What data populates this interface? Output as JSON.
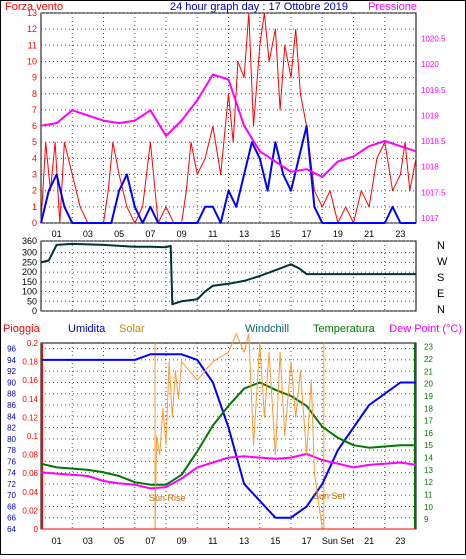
{
  "top": {
    "left_title": "Forza vento",
    "center_title": "24 hour graph day : 17 Ottobre 2019",
    "right_title": "Pressione"
  },
  "bottom_header": {
    "pioggia": "Pioggia",
    "umidita": "Umidita",
    "solar": "Solar",
    "windchill": "Windchill",
    "temperatura": "Temperatura",
    "dewpoint": "Dew Point (°C)"
  },
  "wind_dir_labels": [
    "N",
    "W",
    "S",
    "E",
    "N"
  ],
  "annotations": {
    "sunrise": "Sun Rise",
    "sunset": "Sun Set",
    "sunset_tick": "Sun Set"
  },
  "colors": {
    "wind": "#ff0000",
    "gust": "#0000ff",
    "pressure": "#ff00ff",
    "direction": "#003333",
    "humidity": "#0000ff",
    "temperature": "#007700",
    "dewpoint": "#ff00ff",
    "solar": "#ff9933",
    "rain": "#ff0000",
    "grid": "#008000"
  },
  "chart_data": [
    {
      "type": "line",
      "x_tick_labels": [
        "01",
        "03",
        "05",
        "07",
        "09",
        "11",
        "13",
        "15",
        "17",
        "19",
        "21",
        "23"
      ],
      "left_axis": {
        "ylim": [
          0,
          13
        ],
        "ticks": [
          "0",
          "1",
          "2",
          "3",
          "4",
          "5",
          "6",
          "7",
          "8",
          "9",
          "10",
          "11",
          "12",
          "13"
        ]
      },
      "right_axis": {
        "ylim": [
          1016.9,
          1021.0
        ],
        "ticks": [
          "1017",
          "1017.5",
          "1018",
          "1018.5",
          "1019",
          "1019.5",
          "1020",
          "1020.5"
        ]
      },
      "series": [
        {
          "key": "wind",
          "axis": "left",
          "x": [
            0,
            0.3,
            0.6,
            0.9,
            1.2,
            1.5,
            2,
            2.5,
            3,
            3.5,
            4,
            4.3,
            4.6,
            5,
            5.5,
            6,
            6.5,
            7,
            7.5,
            8,
            8.5,
            9,
            9.3,
            9.6,
            10,
            10.5,
            11,
            11.5,
            12,
            12.3,
            12.6,
            13,
            13.3,
            13.6,
            14,
            14.3,
            14.6,
            15,
            15.3,
            15.6,
            16,
            16.3,
            16.6,
            17,
            17.5,
            18,
            18.5,
            19,
            19.5,
            20,
            20.5,
            21,
            21.5,
            22,
            22.5,
            23,
            23.3,
            23.6,
            24
          ],
          "y": [
            0,
            5,
            2,
            5,
            0,
            5,
            3,
            1,
            0,
            0,
            0,
            2,
            5,
            3,
            1,
            0,
            1,
            5,
            0,
            1,
            0,
            0,
            2,
            5,
            3,
            4,
            6,
            3,
            8,
            5,
            10,
            9,
            13,
            6,
            11,
            13,
            10,
            12,
            7,
            11,
            9,
            12,
            8,
            6,
            2,
            1,
            2,
            0,
            1,
            0,
            2,
            1,
            4,
            5,
            2,
            3,
            5,
            2,
            4
          ]
        },
        {
          "key": "gust",
          "axis": "left",
          "x": [
            0,
            0.5,
            1,
            1.5,
            2,
            2.5,
            3,
            3.5,
            4,
            4.5,
            5,
            5.5,
            6,
            6.5,
            7,
            7.5,
            8,
            8.5,
            9,
            9.5,
            10,
            10.5,
            11,
            11.5,
            12,
            12.5,
            13,
            13.5,
            14,
            14.5,
            15,
            15.5,
            16,
            16.5,
            17,
            17.5,
            18,
            18.5,
            19,
            19.5,
            20,
            20.5,
            21,
            21.5,
            22,
            22.5,
            23,
            23.5,
            24
          ],
          "y": [
            0,
            2,
            3,
            1,
            0,
            0,
            0,
            0,
            0,
            0,
            2,
            3,
            1,
            0,
            1,
            0,
            0,
            0,
            0,
            0,
            0,
            1,
            1,
            0,
            2,
            1,
            3,
            5,
            4,
            2,
            5,
            3,
            2,
            4,
            6,
            1,
            0,
            0,
            0,
            0,
            0,
            0,
            0,
            0,
            0,
            1,
            0,
            0,
            0
          ]
        },
        {
          "key": "pressure",
          "axis": "right",
          "x": [
            0,
            1,
            2,
            3,
            4,
            5,
            6,
            7,
            8,
            9,
            10,
            11,
            12,
            13,
            14,
            15,
            16,
            17,
            18,
            19,
            20,
            21,
            22,
            23,
            24
          ],
          "y": [
            1018.8,
            1018.85,
            1019.1,
            1019.0,
            1018.9,
            1018.85,
            1018.9,
            1019.1,
            1018.6,
            1018.9,
            1019.3,
            1019.8,
            1019.7,
            1018.8,
            1018.3,
            1018.1,
            1017.9,
            1017.95,
            1017.8,
            1018.1,
            1018.2,
            1018.4,
            1018.5,
            1018.4,
            1018.3
          ]
        }
      ]
    },
    {
      "type": "line",
      "x_tick_labels": [
        "01",
        "03",
        "05",
        "07",
        "09",
        "11",
        "13",
        "15",
        "17",
        "19",
        "21",
        "23"
      ],
      "ylim": [
        0,
        360
      ],
      "y_ticks": [
        "0",
        "50",
        "100",
        "150",
        "200",
        "250",
        "300",
        "360"
      ],
      "series": [
        {
          "key": "direction",
          "x": [
            0,
            0.5,
            1,
            2,
            4,
            6,
            7,
            8,
            8.3,
            8.4,
            9,
            10,
            10.5,
            11,
            12,
            13,
            14,
            15,
            16,
            16.5,
            17,
            18,
            20,
            22,
            24
          ],
          "y": [
            250,
            260,
            340,
            345,
            340,
            330,
            330,
            328,
            335,
            35,
            50,
            60,
            100,
            130,
            140,
            155,
            180,
            210,
            240,
            220,
            190,
            190,
            190,
            190,
            190
          ]
        }
      ]
    },
    {
      "type": "line",
      "x_tick_labels": [
        "01",
        "03",
        "05",
        "07",
        "09",
        "11",
        "13",
        "15",
        "17",
        "Sun Set",
        "21",
        "23"
      ],
      "left_axis_outer": {
        "label": "Umidita",
        "ticks": [
          "64",
          "66",
          "68",
          "70",
          "72",
          "74",
          "76",
          "78",
          "80",
          "82",
          "84",
          "86",
          "88",
          "90",
          "92",
          "94",
          "96"
        ]
      },
      "left_axis_inner": {
        "label": "Pioggia",
        "ticks": [
          "0",
          "0.02",
          "0.04",
          "0.06",
          "0.08",
          "0.1",
          "0.12",
          "0.14",
          "0.16",
          "0.18",
          "0.2"
        ]
      },
      "right_axis": {
        "ticks": [
          "9",
          "10",
          "11",
          "12",
          "13",
          "14",
          "15",
          "16",
          "17",
          "18",
          "19",
          "20",
          "21",
          "22",
          "23"
        ]
      },
      "series": [
        {
          "key": "humidity",
          "x": [
            0,
            1,
            2,
            3,
            4,
            5,
            6,
            7,
            8,
            9,
            10,
            11,
            12,
            13,
            14,
            15,
            16,
            17,
            18,
            19,
            20,
            21,
            22,
            23,
            24
          ],
          "y": [
            94,
            94,
            94,
            94,
            94,
            94,
            94,
            95,
            95,
            95,
            94,
            90,
            82,
            72,
            69,
            66,
            66,
            68,
            72,
            78,
            82,
            86,
            88,
            90,
            90
          ]
        },
        {
          "key": "temperature",
          "x": [
            0,
            1,
            2,
            3,
            4,
            5,
            6,
            7,
            8,
            9,
            10,
            11,
            12,
            13,
            14,
            15,
            16,
            17,
            18,
            19,
            20,
            21,
            22,
            23,
            24
          ],
          "y": [
            13.5,
            13.2,
            13.1,
            13.0,
            12.8,
            12.5,
            12.0,
            11.8,
            11.8,
            12.6,
            14.5,
            16.6,
            18.2,
            19.6,
            20.1,
            19.5,
            19.0,
            18.2,
            16.5,
            15.6,
            15.0,
            14.8,
            14.9,
            15.0,
            15.0
          ]
        },
        {
          "key": "dewpoint",
          "x": [
            0,
            1,
            2,
            3,
            4,
            5,
            6,
            7,
            8,
            9,
            10,
            11,
            12,
            13,
            14,
            15,
            16,
            17,
            18,
            19,
            20,
            21,
            22,
            23,
            24
          ],
          "y": [
            12.8,
            12.7,
            12.6,
            12.5,
            12.1,
            11.9,
            11.8,
            11.5,
            11.6,
            12.3,
            13.2,
            13.6,
            14.0,
            14.1,
            14.0,
            13.9,
            14.0,
            14.3,
            13.8,
            13.5,
            13.2,
            13.4,
            13.5,
            13.6,
            13.4
          ]
        },
        {
          "key": "solar",
          "x": [
            0,
            6,
            7.3,
            7.4,
            7.6,
            7.8,
            8,
            8.2,
            8.4,
            8.6,
            8.8,
            9,
            10,
            11,
            12,
            12.5,
            13,
            13.3,
            13.6,
            14,
            14.3,
            14.6,
            15,
            15.3,
            15.6,
            16,
            16.3,
            16.6,
            17,
            17.3,
            17.5,
            18,
            18.5,
            24
          ],
          "y": [
            0,
            0,
            0,
            0.1,
            0.08,
            0.13,
            0.09,
            0.18,
            0.12,
            0.17,
            0.14,
            0.18,
            0.16,
            0.18,
            0.19,
            0.21,
            0.19,
            0.21,
            0.09,
            0.2,
            0.12,
            0.19,
            0.08,
            0.19,
            0.1,
            0.18,
            0.12,
            0.17,
            0.08,
            0.16,
            0.06,
            0,
            0,
            0
          ]
        },
        {
          "key": "rain",
          "x": [
            0,
            24
          ],
          "y": [
            0,
            0
          ]
        }
      ]
    }
  ]
}
